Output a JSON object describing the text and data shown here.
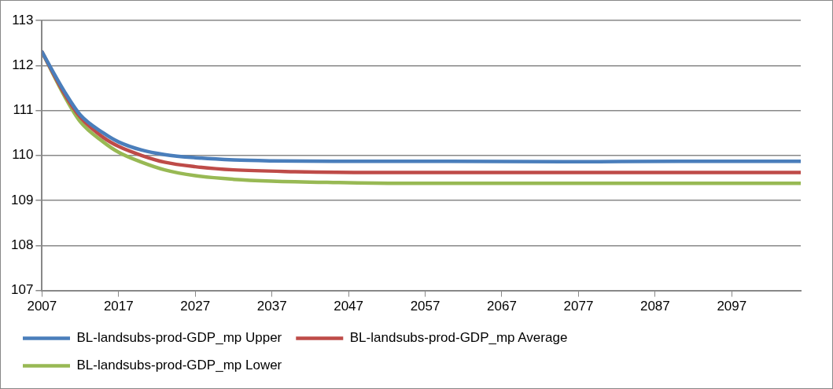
{
  "chart_data": {
    "type": "line",
    "xlim": [
      2007,
      2106
    ],
    "xticks": [
      2007,
      2017,
      2027,
      2037,
      2047,
      2057,
      2067,
      2077,
      2087,
      2097
    ],
    "ylim": [
      107,
      113
    ],
    "yticks": [
      107,
      108,
      109,
      110,
      111,
      112,
      113
    ],
    "grid": "y",
    "legend": "bottom",
    "marker": "none",
    "line_style": "solid",
    "series": [
      {
        "name": "BL-landsubs-prod-GDP_mp Upper",
        "color": "#4a7ebb",
        "x": [
          2007,
          2010,
          2012,
          2015,
          2017,
          2020,
          2023,
          2027,
          2032,
          2037,
          2045,
          2060,
          2075,
          2090,
          2106
        ],
        "values": [
          112.3,
          111.4,
          110.9,
          110.5,
          110.3,
          110.12,
          110.02,
          109.95,
          109.9,
          109.88,
          109.87,
          109.87,
          109.86,
          109.87,
          109.87
        ]
      },
      {
        "name": "BL-landsubs-prod-GDP_mp Average",
        "color": "#be4b48",
        "x": [
          2007,
          2010,
          2012,
          2015,
          2017,
          2020,
          2023,
          2027,
          2032,
          2040,
          2050,
          2070,
          2090,
          2106
        ],
        "values": [
          112.3,
          111.35,
          110.85,
          110.4,
          110.2,
          110.0,
          109.85,
          109.75,
          109.68,
          109.64,
          109.62,
          109.62,
          109.62,
          109.62
        ]
      },
      {
        "name": "BL-landsubs-prod-GDP_mp Lower",
        "color": "#98b954",
        "x": [
          2007,
          2010,
          2012,
          2015,
          2017,
          2020,
          2023,
          2027,
          2032,
          2037,
          2045,
          2055,
          2075,
          2090,
          2106
        ],
        "values": [
          112.3,
          111.3,
          110.75,
          110.3,
          110.07,
          109.85,
          109.68,
          109.55,
          109.47,
          109.43,
          109.4,
          109.38,
          109.38,
          109.38,
          109.38
        ]
      }
    ]
  }
}
